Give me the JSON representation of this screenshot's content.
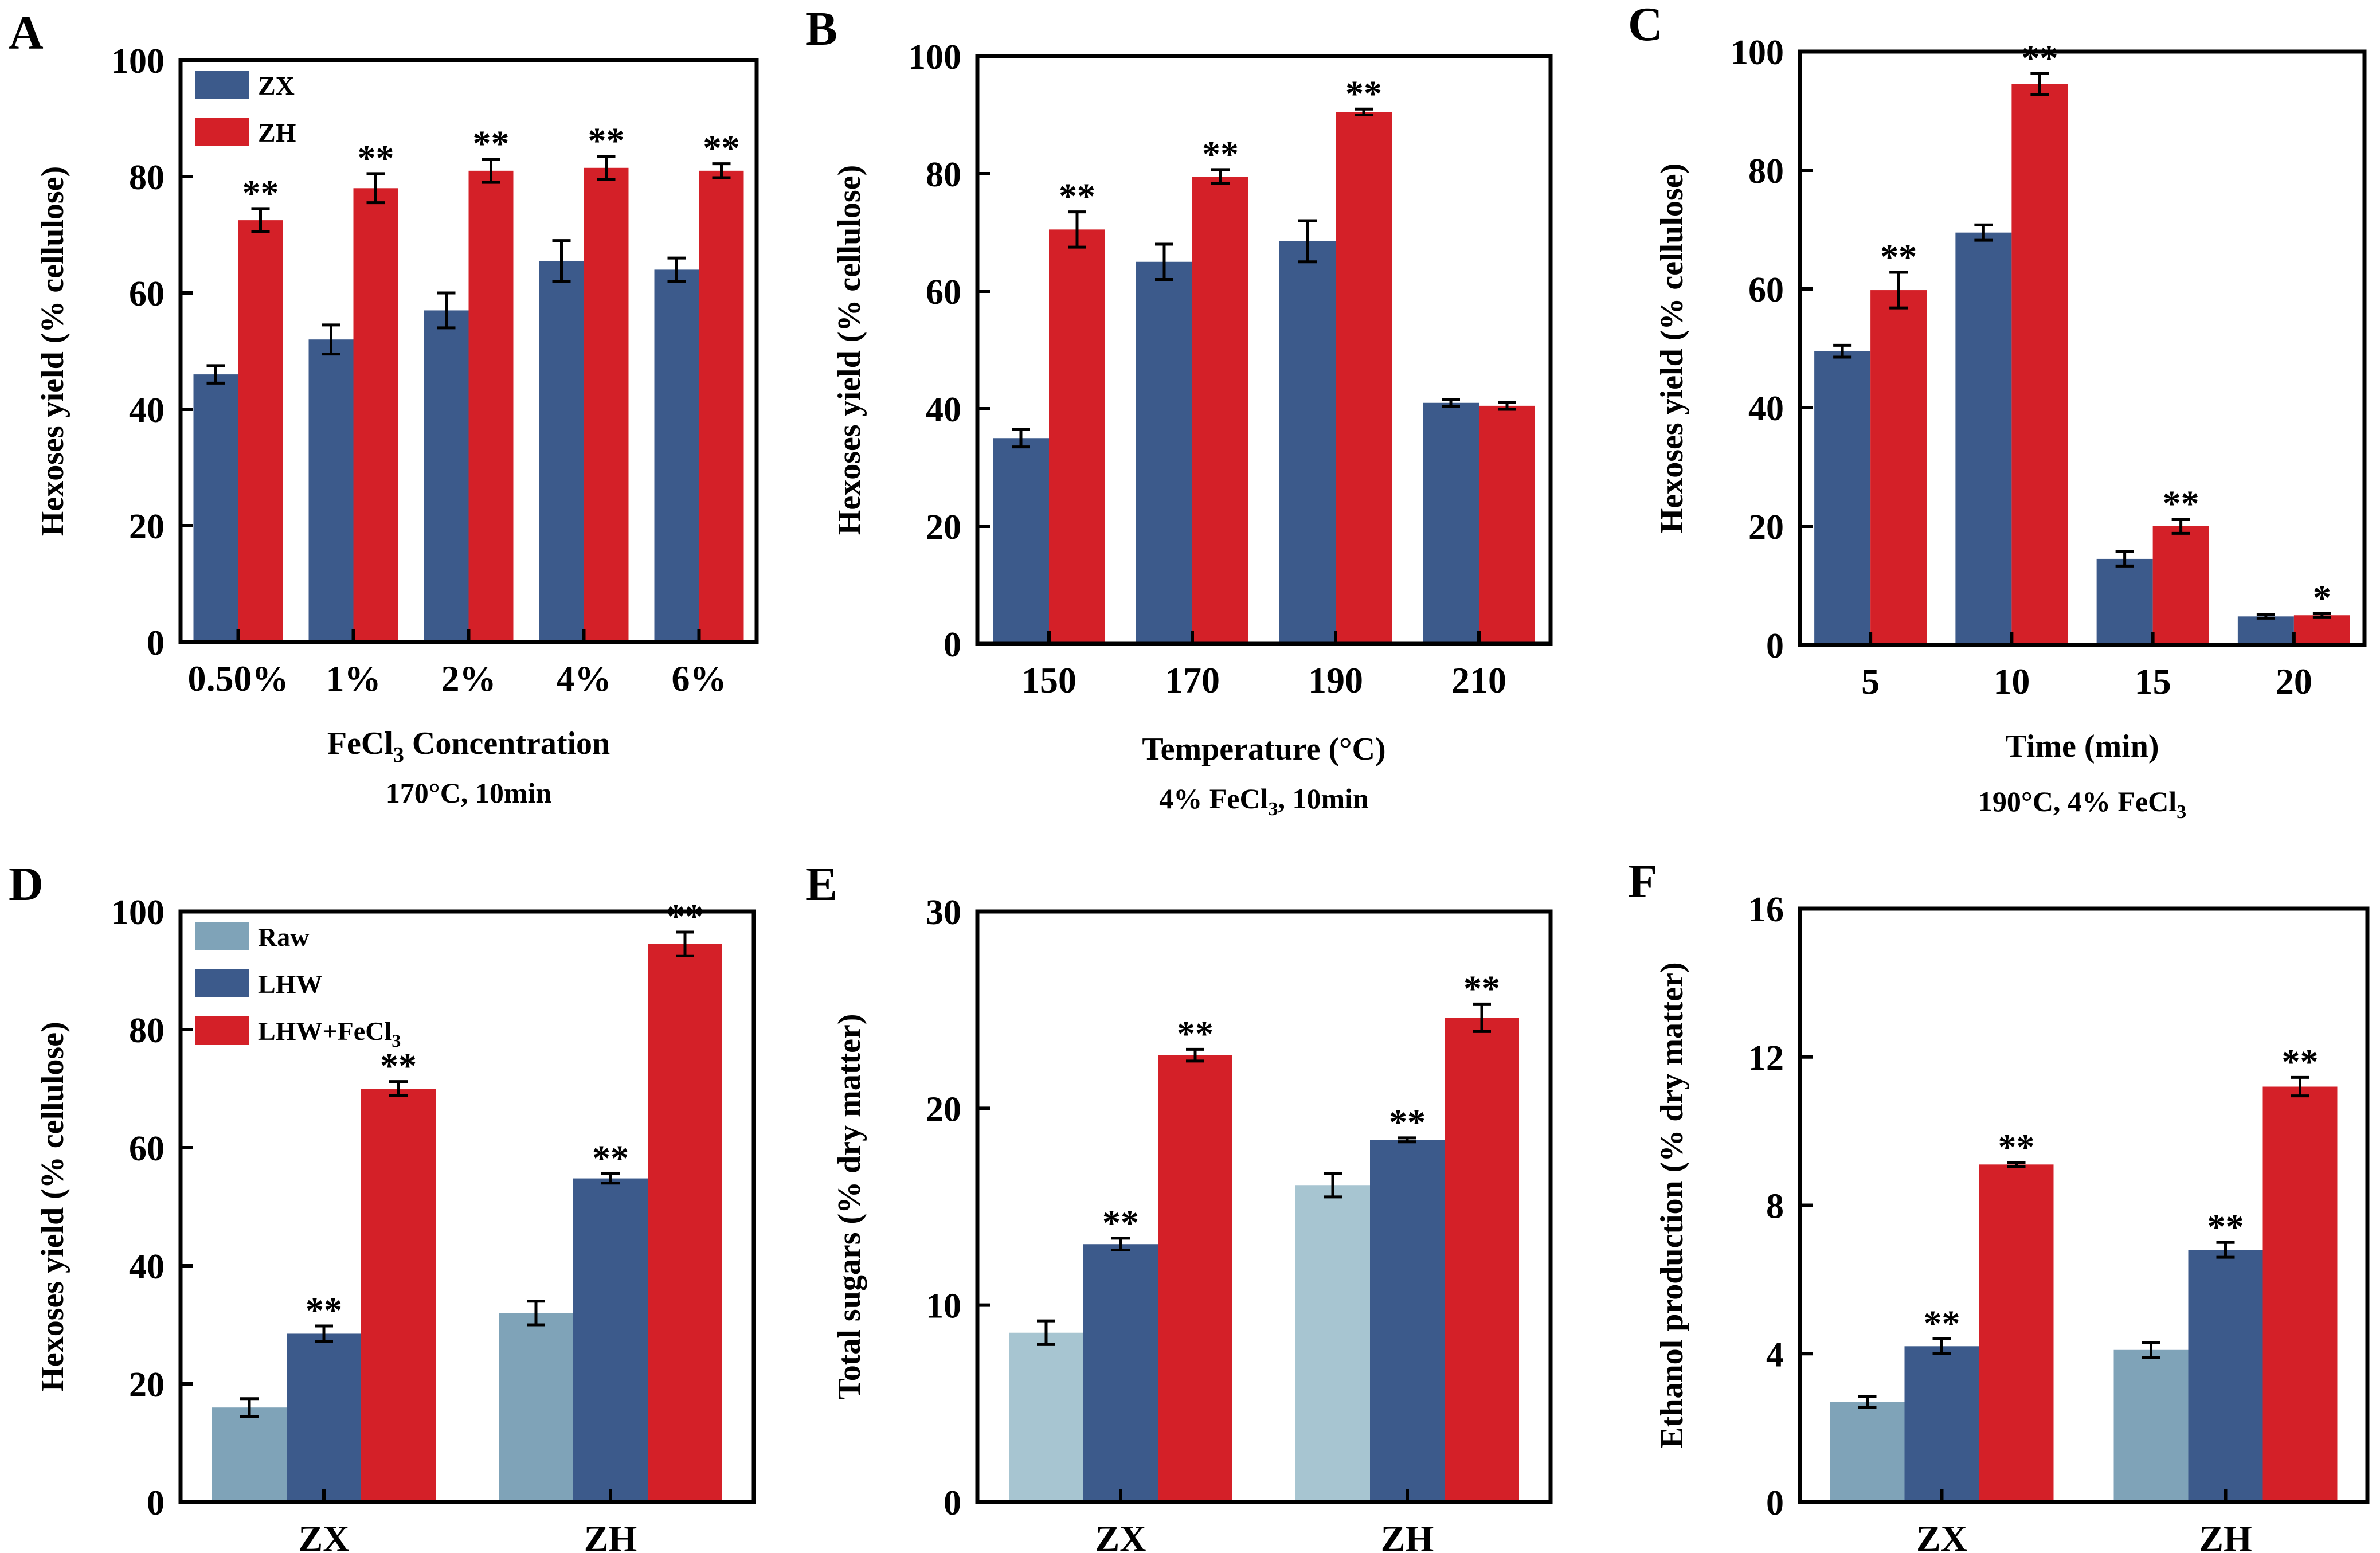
{
  "colors": {
    "zx": "#3C5A8B",
    "zh": "#D42028",
    "raw_d": "#7FA3B8",
    "raw_e": "#A7C5D1",
    "raw_f": "#7FA3B8",
    "axis": "#000000"
  },
  "chart_data": [
    {
      "panel": "A",
      "type": "bar",
      "categories": [
        "0.50%",
        "1%",
        "2%",
        "4%",
        "6%"
      ],
      "series": [
        {
          "name": "ZX",
          "key": "zx",
          "values": [
            46,
            52,
            57,
            65.5,
            64
          ],
          "errors": [
            1.5,
            2.5,
            3,
            3.5,
            2
          ],
          "sig": [
            "",
            "",
            "",
            "",
            ""
          ]
        },
        {
          "name": "ZH",
          "key": "zh",
          "values": [
            72.5,
            78,
            81,
            81.5,
            81
          ],
          "errors": [
            2,
            2.5,
            2,
            2,
            1.2
          ],
          "sig": [
            "**",
            "**",
            "**",
            "**",
            "**"
          ]
        }
      ],
      "ylabel": "Hexoses yield (% cellulose)",
      "xlabel_main": "FeCl",
      "xlabel_sub": "3",
      "xlabel_tail": " Concentration",
      "condition": "170°C, 10min",
      "condition_sub": "",
      "condition_tail": "",
      "ylim": [
        0,
        100
      ],
      "yticks": [
        0,
        20,
        40,
        60,
        80,
        100
      ],
      "legend": "top-left"
    },
    {
      "panel": "B",
      "type": "bar",
      "categories": [
        "150",
        "170",
        "190",
        "210"
      ],
      "series": [
        {
          "name": "ZX",
          "key": "zx",
          "values": [
            35,
            65,
            68.5,
            41
          ],
          "errors": [
            1.5,
            3,
            3.5,
            0.6
          ],
          "sig": [
            "",
            "",
            "",
            ""
          ]
        },
        {
          "name": "ZH",
          "key": "zh",
          "values": [
            70.5,
            79.5,
            90.5,
            40.5
          ],
          "errors": [
            3,
            1.2,
            0.5,
            0.6
          ],
          "sig": [
            "**",
            "**",
            "**",
            ""
          ]
        }
      ],
      "ylabel": "Hexoses yield (% cellulose)",
      "xlabel_main": "Temperature (°C)",
      "xlabel_sub": "",
      "xlabel_tail": "",
      "condition": "4% FeCl",
      "condition_sub": "3",
      "condition_tail": ", 10min",
      "ylim": [
        0,
        100
      ],
      "yticks": [
        0,
        20,
        40,
        60,
        80,
        100
      ],
      "legend": "none"
    },
    {
      "panel": "C",
      "type": "bar",
      "categories": [
        "5",
        "10",
        "15",
        "20"
      ],
      "series": [
        {
          "name": "ZX",
          "key": "zx",
          "values": [
            49.5,
            69.5,
            14.5,
            4.8
          ],
          "errors": [
            1,
            1.3,
            1.2,
            0.3
          ],
          "sig": [
            "",
            "",
            "",
            ""
          ]
        },
        {
          "name": "ZH",
          "key": "zh",
          "values": [
            59.8,
            94.5,
            20,
            5
          ],
          "errors": [
            3,
            1.8,
            1.2,
            0.3
          ],
          "sig": [
            "**",
            "**",
            "**",
            "*"
          ]
        }
      ],
      "ylabel": "Hexoses yield (% cellulose)",
      "xlabel_main": "Time (min)",
      "xlabel_sub": "",
      "xlabel_tail": "",
      "condition": "190°C, 4% FeCl",
      "condition_sub": "3",
      "condition_tail": "",
      "ylim": [
        0,
        100
      ],
      "yticks": [
        0,
        20,
        40,
        60,
        80,
        100
      ],
      "legend": "none"
    },
    {
      "panel": "D",
      "type": "bar",
      "categories": [
        "ZX",
        "ZH"
      ],
      "series": [
        {
          "name": "Raw",
          "key": "raw_d",
          "values": [
            16,
            32
          ],
          "errors": [
            1.5,
            2
          ],
          "sig": [
            "",
            ""
          ]
        },
        {
          "name": "LHW",
          "key": "zx",
          "values": [
            28.5,
            54.8
          ],
          "errors": [
            1.3,
            0.8
          ],
          "sig": [
            "**",
            "**"
          ]
        },
        {
          "name": "LHW+FeCl",
          "name_sub": "3",
          "key": "zh",
          "values": [
            70,
            94.5
          ],
          "errors": [
            1.2,
            2
          ],
          "sig": [
            "**",
            "**"
          ]
        }
      ],
      "ylabel": "Hexoses yield (% cellulose)",
      "xlabel_main": "",
      "xlabel_sub": "",
      "xlabel_tail": "",
      "condition": "",
      "condition_sub": "",
      "condition_tail": "",
      "ylim": [
        0,
        100
      ],
      "yticks": [
        0,
        20,
        40,
        60,
        80,
        100
      ],
      "legend": "top-left"
    },
    {
      "panel": "E",
      "type": "bar",
      "categories": [
        "ZX",
        "ZH"
      ],
      "series": [
        {
          "name": "Raw",
          "key": "raw_e",
          "values": [
            8.6,
            16.1
          ],
          "errors": [
            0.6,
            0.6
          ],
          "sig": [
            "",
            ""
          ]
        },
        {
          "name": "LHW",
          "key": "zx",
          "values": [
            13.1,
            18.4
          ],
          "errors": [
            0.3,
            0.1
          ],
          "sig": [
            "**",
            "**"
          ]
        },
        {
          "name": "LHW+FeCl3",
          "key": "zh",
          "values": [
            22.7,
            24.6
          ],
          "errors": [
            0.3,
            0.7
          ],
          "sig": [
            "**",
            "**"
          ]
        }
      ],
      "ylabel": "Total sugars (% dry matter)",
      "xlabel_main": "",
      "xlabel_sub": "",
      "xlabel_tail": "",
      "condition": "",
      "condition_sub": "",
      "condition_tail": "",
      "ylim": [
        0,
        30
      ],
      "yticks": [
        0,
        10,
        20,
        30
      ],
      "legend": "none"
    },
    {
      "panel": "F",
      "type": "bar",
      "categories": [
        "ZX",
        "ZH"
      ],
      "series": [
        {
          "name": "Raw",
          "key": "raw_f",
          "values": [
            2.7,
            4.1
          ],
          "errors": [
            0.15,
            0.2
          ],
          "sig": [
            "",
            ""
          ]
        },
        {
          "name": "LHW",
          "key": "zx",
          "values": [
            4.2,
            6.8
          ],
          "errors": [
            0.2,
            0.2
          ],
          "sig": [
            "**",
            "**"
          ]
        },
        {
          "name": "LHW+FeCl3",
          "key": "zh",
          "values": [
            9.1,
            11.2
          ],
          "errors": [
            0.05,
            0.25
          ],
          "sig": [
            "**",
            "**"
          ]
        }
      ],
      "ylabel": "Ethanol production (% dry matter)",
      "xlabel_main": "",
      "xlabel_sub": "",
      "xlabel_tail": "",
      "condition": "",
      "condition_sub": "",
      "condition_tail": "",
      "ylim": [
        0,
        16
      ],
      "yticks": [
        0,
        4,
        8,
        12,
        16
      ],
      "legend": "none"
    }
  ]
}
